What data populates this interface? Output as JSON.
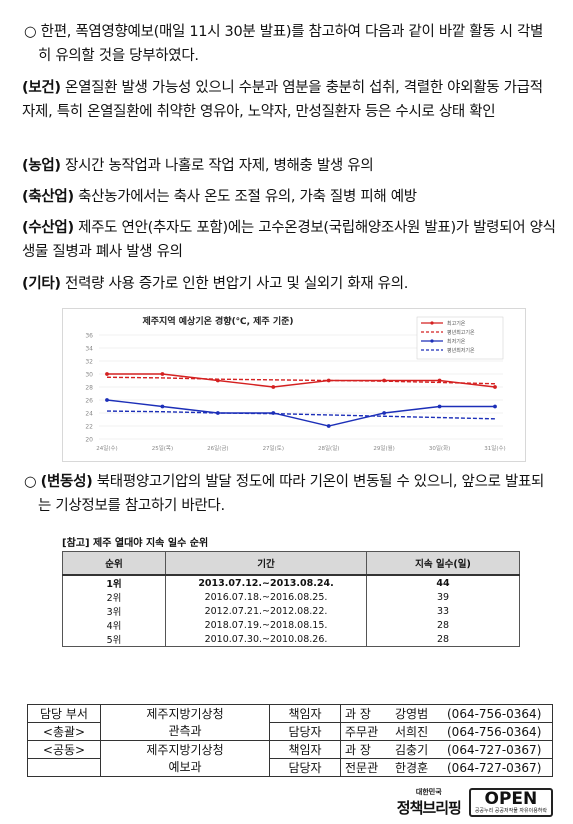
{
  "intro": {
    "marker": "○",
    "text": "한편, 폭염영향예보(매일 11시 30분 발표)를 참고하여 다음과 같이 바깥 활동 시 각별히 유의할 것을 당부하였다."
  },
  "sectors": [
    {
      "label": "(보건)",
      "text": "온열질환 발생 가능성 있으니 수분과 염분을 충분히 섭취, 격렬한 야외활동 가급적 자제, 특히 온열질환에 취약한 영유아, 노약자, 만성질환자 등은 수시로 상태 확인"
    },
    {
      "label": "(농업)",
      "text": "장시간 농작업과 나홀로 작업 자제, 병해충 발생 유의"
    },
    {
      "label": "(축산업)",
      "text": "축산농가에서는 축사 온도 조절 유의, 가축 질병 피해 예방"
    },
    {
      "label": "(수산업)",
      "text": "제주도 연안(추자도 포함)에는 고수온경보(국립해양조사원 발표)가 발령되어 양식생물 질병과 폐사 발생 유의"
    },
    {
      "label": "(기타)",
      "text": "전력량 사용 증가로 인한 변압기 사고 및 실외기 화재 유의."
    }
  ],
  "chart_data": {
    "type": "line",
    "title": "제주지역 예상기온 경향(℃, 제주 기준)",
    "categories": [
      "24일(수)",
      "25일(목)",
      "26일(금)",
      "27일(토)",
      "28일(일)",
      "29일(월)",
      "30일(화)",
      "31일(수)"
    ],
    "ylim": [
      20,
      36
    ],
    "yticks": [
      20,
      22,
      24,
      26,
      28,
      30,
      32,
      34,
      36
    ],
    "series": [
      {
        "name": "최고기온",
        "color": "#d42020",
        "dash": false,
        "values": [
          30,
          30,
          29,
          28,
          29,
          29,
          29,
          28
        ]
      },
      {
        "name": "평년최고기온",
        "color": "#d42020",
        "dash": true,
        "values": [
          29.5,
          29.4,
          29.2,
          29.1,
          29.0,
          28.9,
          28.7,
          28.5
        ]
      },
      {
        "name": "최저기온",
        "color": "#1c2fb8",
        "dash": false,
        "values": [
          26,
          25,
          24,
          24,
          22,
          24,
          25,
          25
        ]
      },
      {
        "name": "평년최저기온",
        "color": "#1c2fb8",
        "dash": true,
        "values": [
          24.3,
          24.2,
          24.0,
          23.9,
          23.7,
          23.5,
          23.3,
          23.1
        ]
      }
    ],
    "legend_position": "top-right",
    "grid": true
  },
  "variability": {
    "marker": "○",
    "label": "(변동성)",
    "text": "북태평양고기압의 발달 정도에 따라 기온이 변동될 수 있으니, 앞으로 발표되는 기상정보를 참고하기 바란다."
  },
  "reference": {
    "title": "[참고] 제주 열대야 지속 일수 순위",
    "headers": [
      "순위",
      "기간",
      "지속 일수(일)"
    ],
    "rows": [
      [
        "1위",
        "2013.07.12.~2013.08.24.",
        "44"
      ],
      [
        "2위",
        "2016.07.18.~2016.08.25.",
        "39"
      ],
      [
        "3위",
        "2012.07.21.~2012.08.22.",
        "33"
      ],
      [
        "4위",
        "2018.07.19.~2018.08.15.",
        "28"
      ],
      [
        "5위",
        "2010.07.30.~2010.08.26.",
        "28"
      ]
    ]
  },
  "contacts": {
    "dept_label": "담당 부서",
    "dept_main": "<총괄>",
    "dept_joint": "<공동>",
    "org1_line1": "제주지방기상청",
    "org1_line2": "관측과",
    "org2_line1": "제주지방기상청",
    "org2_line2": "예보과",
    "people": [
      {
        "role": "책임자",
        "title": "과 장",
        "name": "강영범",
        "phone": "(064-756-0364)"
      },
      {
        "role": "담당자",
        "title": "주무관",
        "name": "서희진",
        "phone": "(064-756-0364)"
      },
      {
        "role": "책임자",
        "title": "과 장",
        "name": "김충기",
        "phone": "(064-727-0367)"
      },
      {
        "role": "담당자",
        "title": "전문관",
        "name": "한경훈",
        "phone": "(064-727-0367)"
      }
    ]
  },
  "footer": {
    "brief_small": "대한민국",
    "brief_big": "정책브리핑",
    "open_big": "OPEN",
    "open_small": "공공누리 공공저작물 자유이용허락"
  }
}
